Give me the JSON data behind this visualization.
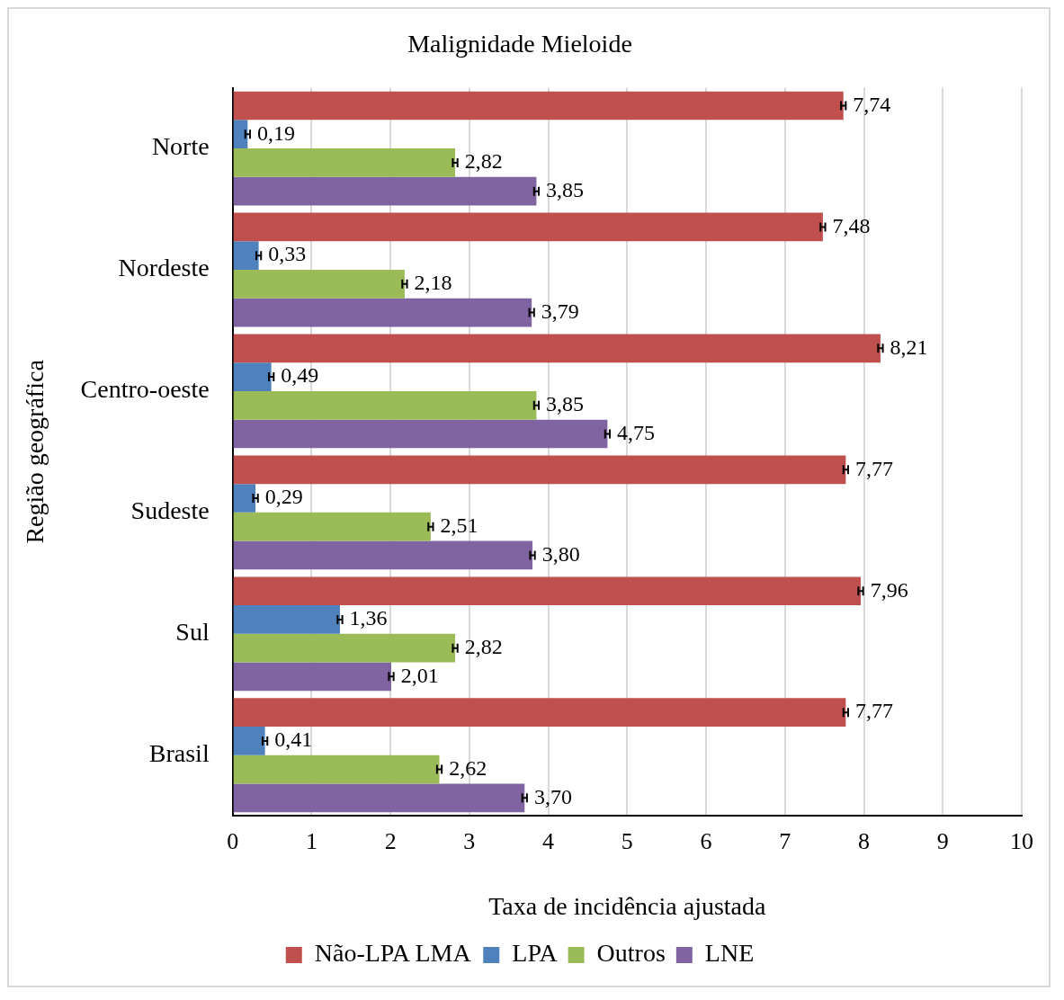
{
  "chart_data": {
    "type": "bar",
    "orientation": "horizontal",
    "title": "Malignidade Mieloide",
    "xlabel": "Taxa de incidência ajustada",
    "ylabel": "Região geográfica",
    "categories": [
      "Norte",
      "Nordeste",
      "Centro-oeste",
      "Sudeste",
      "Sul",
      "Brasil"
    ],
    "series": [
      {
        "name": "Não-LPA LMA",
        "color": "#c0504d",
        "values": [
          7.74,
          7.48,
          8.21,
          7.77,
          7.96,
          7.77
        ],
        "errors": [
          0.03,
          0.03,
          0.03,
          0.03,
          0.03,
          0.03
        ],
        "value_labels": [
          "7,74",
          "7,48",
          "8,21",
          "7,77",
          "7,96",
          "7,77"
        ]
      },
      {
        "name": "LPA",
        "color": "#4f81bd",
        "values": [
          0.19,
          0.33,
          0.49,
          0.29,
          1.36,
          0.41
        ],
        "errors": [
          0.03,
          0.03,
          0.03,
          0.03,
          0.03,
          0.03
        ],
        "value_labels": [
          "0,19",
          "0,33",
          "0,49",
          "0,29",
          "1,36",
          "0,41"
        ]
      },
      {
        "name": "Outros",
        "color": "#9bbb59",
        "values": [
          2.82,
          2.18,
          3.85,
          2.51,
          2.82,
          2.62
        ],
        "errors": [
          0.03,
          0.03,
          0.03,
          0.03,
          0.03,
          0.03
        ],
        "value_labels": [
          "2,82",
          "2,18",
          "3,85",
          "2,51",
          "2,82",
          "2,62"
        ]
      },
      {
        "name": "LNE",
        "color": "#8064a2",
        "values": [
          3.85,
          3.79,
          4.75,
          3.8,
          2.01,
          3.7
        ],
        "errors": [
          0.03,
          0.03,
          0.03,
          0.03,
          0.03,
          0.03
        ],
        "value_labels": [
          "3,85",
          "3,79",
          "4,75",
          "3,80",
          "2,01",
          "3,70"
        ]
      }
    ],
    "xlim": [
      0,
      10
    ],
    "xticks": [
      0,
      1,
      2,
      3,
      4,
      5,
      6,
      7,
      8,
      9,
      10
    ],
    "grid": "x",
    "legend": "bottom"
  }
}
